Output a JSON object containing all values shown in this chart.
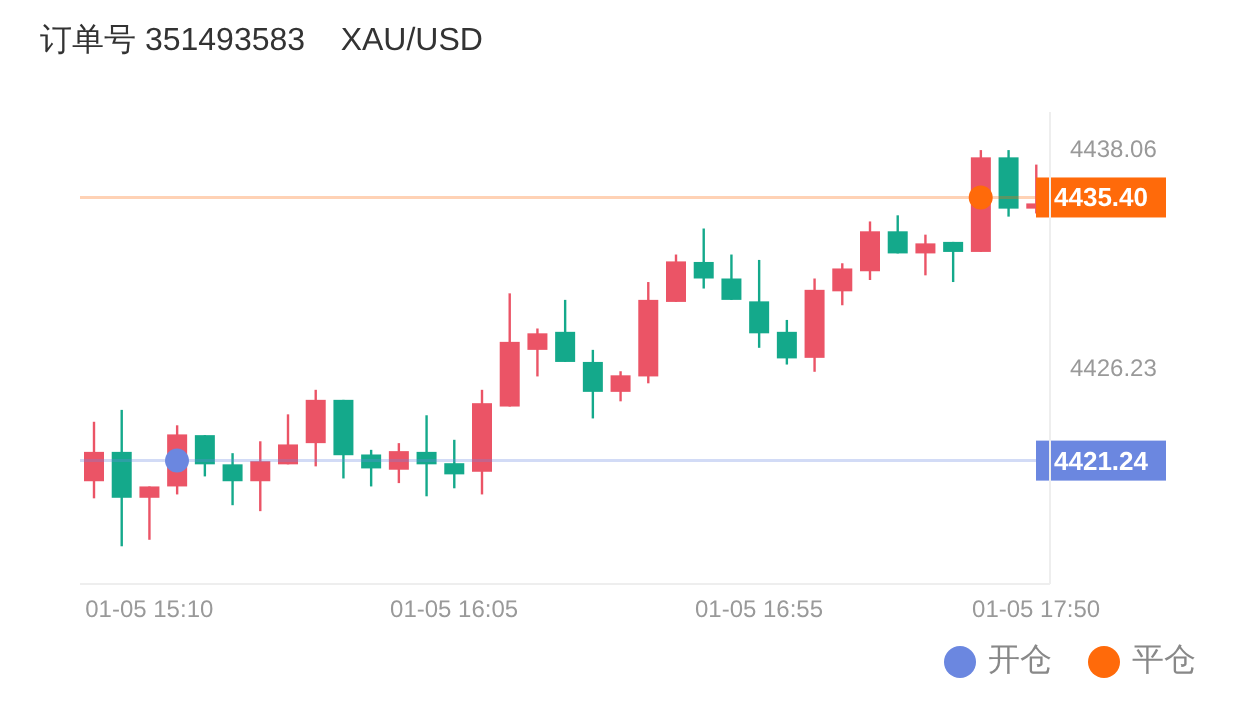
{
  "chart_data": {
    "type": "candlestick",
    "title": "订单号 351493583    XAU/USD",
    "categories": [
      null,
      null,
      "01-05 15:10",
      null,
      null,
      null,
      null,
      null,
      null,
      null,
      null,
      null,
      null,
      "01-05 16:05",
      null,
      null,
      null,
      null,
      null,
      null,
      null,
      null,
      null,
      null,
      "01-05 16:55",
      null,
      null,
      null,
      null,
      null,
      null,
      null,
      null,
      null,
      "01-05 17:50"
    ],
    "ohlc": [
      [
        4420.13,
        4423.33,
        4419.21,
        4421.71
      ],
      [
        4421.71,
        4423.97,
        4416.63,
        4419.24
      ],
      [
        4419.24,
        4419.85,
        4416.98,
        4419.85
      ],
      [
        4419.85,
        4423.14,
        4419.42,
        4422.65
      ],
      [
        4422.61,
        4422.61,
        4420.39,
        4421.04
      ],
      [
        4421.04,
        4421.64,
        4418.84,
        4420.13
      ],
      [
        4420.13,
        4422.28,
        4418.52,
        4421.21
      ],
      [
        4421.04,
        4423.73,
        4421.04,
        4422.11
      ],
      [
        4422.18,
        4425.05,
        4420.93,
        4424.51
      ],
      [
        4424.51,
        4424.51,
        4420.28,
        4421.53
      ],
      [
        4421.57,
        4421.82,
        4419.85,
        4420.82
      ],
      [
        4420.75,
        4422.18,
        4420.03,
        4421.75
      ],
      [
        4421.71,
        4423.68,
        4419.32,
        4421.04
      ],
      [
        4421.1,
        4422.36,
        4419.75,
        4420.5
      ],
      [
        4420.64,
        4425.05,
        4419.42,
        4424.33
      ],
      [
        4424.15,
        4430.24,
        4424.15,
        4427.63
      ],
      [
        4427.2,
        4428.35,
        4425.77,
        4428.09
      ],
      [
        4428.17,
        4429.89,
        4426.55,
        4426.55
      ],
      [
        4426.55,
        4427.2,
        4423.51,
        4424.94
      ],
      [
        4424.94,
        4426.05,
        4424.43,
        4425.83
      ],
      [
        4425.77,
        4430.85,
        4425.4,
        4429.89
      ],
      [
        4429.78,
        4432.33,
        4429.78,
        4431.96
      ],
      [
        4431.93,
        4433.73,
        4430.5,
        4431.04
      ],
      [
        4431.04,
        4432.33,
        4429.89,
        4429.89
      ],
      [
        4429.81,
        4432.04,
        4427.31,
        4428.09
      ],
      [
        4428.17,
        4428.81,
        4426.41,
        4426.74
      ],
      [
        4426.77,
        4431.04,
        4426.02,
        4430.43
      ],
      [
        4430.35,
        4431.86,
        4429.6,
        4431.58
      ],
      [
        4431.43,
        4434.11,
        4430.96,
        4433.58
      ],
      [
        4433.58,
        4434.44,
        4432.39,
        4432.39
      ],
      [
        4432.39,
        4433.4,
        4431.21,
        4432.93
      ],
      [
        4433.01,
        4433.01,
        4430.85,
        4432.47
      ],
      [
        4432.47,
        4437.95,
        4432.47,
        4437.56
      ],
      [
        4437.56,
        4437.95,
        4434.37,
        4434.8
      ],
      [
        4434.8,
        4437.17,
        4434.54,
        4435.08
      ]
    ],
    "colors": [
      "#eb5466",
      "#14a98b",
      "#eb5466",
      "#eb5466",
      "#14a98b",
      "#14a98b",
      "#eb5466",
      "#eb5466",
      "#eb5466",
      "#14a98b",
      "#14a98b",
      "#eb5466",
      "#14a98b",
      "#14a98b",
      "#eb5466",
      "#eb5466",
      "#eb5466",
      "#14a98b",
      "#14a98b",
      "#eb5466",
      "#eb5466",
      "#eb5466",
      "#14a98b",
      "#14a98b",
      "#14a98b",
      "#14a98b",
      "#eb5466",
      "#eb5466",
      "#eb5466",
      "#14a98b",
      "#eb5466",
      "#14a98b",
      "#eb5466",
      "#14a98b",
      "#eb5466"
    ],
    "series": [
      {
        "name": "开仓",
        "type": "scatter",
        "color": "#6b87e0",
        "values": [
          null,
          null,
          null,
          4421.24,
          null,
          null,
          null,
          null,
          null,
          null,
          null,
          null,
          null,
          null,
          null,
          null,
          null,
          null,
          null,
          null,
          null,
          null,
          null,
          null,
          null,
          null,
          null,
          null,
          null,
          null,
          null,
          null,
          null,
          null,
          null
        ]
      },
      {
        "name": "平仓",
        "type": "scatter",
        "color": "#ff6a0a",
        "values": [
          null,
          null,
          null,
          null,
          null,
          null,
          null,
          null,
          null,
          null,
          null,
          null,
          null,
          null,
          null,
          null,
          null,
          null,
          null,
          null,
          null,
          null,
          null,
          null,
          null,
          null,
          null,
          null,
          null,
          null,
          null,
          null,
          4435.4,
          null,
          null
        ]
      }
    ],
    "marker": "circle",
    "ylim": [
      4414.6,
      4440
    ],
    "yticks": [
      4438.06,
      4426.23
    ],
    "ref_lines": [
      {
        "axis": "y",
        "value": 4435.4,
        "label": "4435.40",
        "color": "#ff6a0a"
      },
      {
        "axis": "y",
        "value": 4421.24,
        "label": "4421.24",
        "color": "#6b87e0"
      }
    ],
    "legend": "bottom right"
  }
}
